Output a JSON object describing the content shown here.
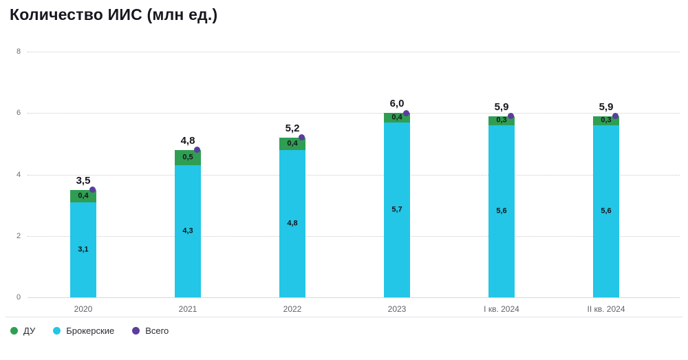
{
  "colors": {
    "du_green": "#2f9e53",
    "broker_cyan": "#23c6e6",
    "total_purple": "#5a3d9c",
    "grid": "#c9c9cf",
    "axis_text": "#6a6a72",
    "label_dark": "#15151c"
  },
  "chart_data": {
    "type": "bar",
    "stacked": true,
    "title": "Количество ИИС (млн ед.)",
    "categories": [
      "2020",
      "2021",
      "2022",
      "2023",
      "I кв. 2024",
      "II кв. 2024"
    ],
    "series": [
      {
        "name": "Брокерские",
        "color_key": "broker_cyan",
        "values": [
          3.1,
          4.3,
          4.8,
          5.7,
          5.6,
          5.6
        ],
        "labels": [
          "3,1",
          "4,3",
          "4,8",
          "5,7",
          "5,6",
          "5,6"
        ]
      },
      {
        "name": "ДУ",
        "color_key": "du_green",
        "values": [
          0.4,
          0.5,
          0.4,
          0.4,
          0.3,
          0.3
        ],
        "labels": [
          "0,4",
          "0,5",
          "0,4",
          "0,4",
          "0,3",
          "0,3"
        ]
      }
    ],
    "totals": {
      "name": "Всего",
      "color_key": "total_purple",
      "values": [
        3.5,
        4.8,
        5.2,
        6.0,
        5.9,
        5.9
      ],
      "labels": [
        "3,5",
        "4,8",
        "5,2",
        "6,0",
        "5,9",
        "5,9"
      ]
    },
    "ylim": [
      0,
      8
    ],
    "yticks": [
      0,
      2,
      4,
      6,
      8
    ],
    "grid": "dotted-horizontal",
    "legend_position": "bottom-left"
  },
  "legend": [
    {
      "label": "ДУ",
      "color_key": "du_green"
    },
    {
      "label": "Брокерские",
      "color_key": "broker_cyan"
    },
    {
      "label": "Всего",
      "color_key": "total_purple"
    }
  ]
}
